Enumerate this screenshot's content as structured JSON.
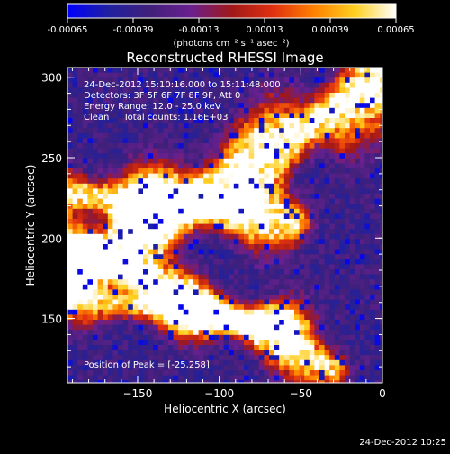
{
  "chart_data": {
    "type": "heatmap",
    "title": "Reconstructed RHESSI Image",
    "xlabel": "Heliocentric X (arcsec)",
    "ylabel": "Heliocentric Y (arcsec)",
    "xlim": [
      -193,
      0
    ],
    "ylim": [
      110,
      306
    ],
    "xticks": [
      -150,
      -100,
      -50,
      0
    ],
    "yticks": [
      150,
      200,
      250,
      300
    ],
    "colorbar": {
      "min": -0.00065,
      "max": 0.00065,
      "ticks": [
        "-0.00065",
        "-0.00039",
        "-0.00013",
        "0.00013",
        "0.00039",
        "0.00065"
      ],
      "units": "(photons cm⁻² s⁻¹ asec⁻²)",
      "colormap": [
        "#0000ff",
        "#2020a0",
        "#40207a",
        "#6a2090",
        "#a01818",
        "#e03010",
        "#ff8000",
        "#ffd020",
        "#ffffff"
      ]
    },
    "annotations": [
      "24-Dec-2012 15:10:16.000 to 15:11:48.000",
      "Detectors: 3F 5F 6F 7F 8F 9F, Att 0",
      "Energy Range: 12.0 - 25.0 keV",
      "Clean     Total counts: 1.16E+03"
    ],
    "peak_label": "Position of Peak = [-25,258]",
    "peak": [
      -25,
      258
    ],
    "bands": [
      {
        "x0": -193,
        "y0": 178,
        "x1": -5,
        "y1": 295,
        "width": 13,
        "intensity": 0.95
      },
      {
        "x0": -193,
        "y0": 228,
        "x1": -55,
        "y1": 210,
        "width": 10,
        "intensity": 0.85
      },
      {
        "x0": -190,
        "y0": 195,
        "x1": -30,
        "y1": 118,
        "width": 9,
        "intensity": 0.8
      },
      {
        "x0": -193,
        "y0": 163,
        "x1": -60,
        "y1": 148,
        "width": 8,
        "intensity": 0.75
      }
    ]
  },
  "footer": {
    "timestamp": "24-Dec-2012 10:25"
  }
}
